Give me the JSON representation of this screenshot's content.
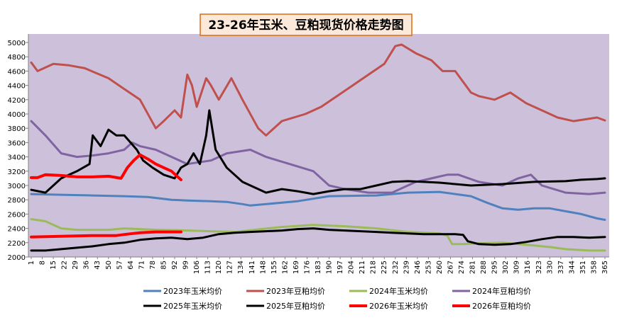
{
  "chart_data": {
    "type": "line",
    "title": "23-26年玉米、豆粕现货价格走势图",
    "xlabel": "",
    "ylabel": "",
    "xlim": [
      1,
      365
    ],
    "ylim": [
      2000,
      5000
    ],
    "y_ticks": [
      2000,
      2200,
      2400,
      2600,
      2800,
      3000,
      3200,
      3400,
      3600,
      3800,
      4000,
      4200,
      4400,
      4600,
      4800,
      5000
    ],
    "x_ticks": [
      1,
      8,
      15,
      22,
      29,
      36,
      43,
      50,
      57,
      64,
      71,
      78,
      85,
      92,
      99,
      106,
      113,
      120,
      127,
      134,
      141,
      148,
      155,
      162,
      169,
      176,
      183,
      190,
      197,
      204,
      211,
      218,
      225,
      232,
      239,
      246,
      253,
      260,
      267,
      274,
      281,
      288,
      295,
      302,
      309,
      316,
      323,
      330,
      337,
      344,
      351,
      358,
      365
    ],
    "grid": false,
    "legend_position": "bottom",
    "series": [
      {
        "name": "2023年玉米均价",
        "color": "#4f81bd",
        "width": 3,
        "x": [
          1,
          20,
          40,
          60,
          75,
          90,
          100,
          115,
          125,
          135,
          140,
          170,
          190,
          220,
          240,
          260,
          270,
          280,
          290,
          300,
          310,
          320,
          330,
          340,
          350,
          360,
          365
        ],
        "y": [
          2880,
          2870,
          2860,
          2850,
          2840,
          2800,
          2790,
          2780,
          2770,
          2740,
          2720,
          2780,
          2850,
          2860,
          2900,
          2910,
          2880,
          2850,
          2760,
          2680,
          2660,
          2680,
          2680,
          2640,
          2600,
          2540,
          2520
        ]
      },
      {
        "name": "2023年豆粕均价",
        "color": "#c0504d",
        "width": 3,
        "x": [
          1,
          5,
          15,
          25,
          35,
          50,
          60,
          70,
          80,
          85,
          92,
          96,
          100,
          103,
          106,
          112,
          115,
          120,
          128,
          135,
          145,
          150,
          160,
          175,
          185,
          195,
          205,
          215,
          225,
          232,
          236,
          245,
          255,
          262,
          270,
          280,
          285,
          295,
          305,
          315,
          325,
          335,
          345,
          360,
          365
        ],
        "y": [
          4720,
          4600,
          4700,
          4680,
          4640,
          4500,
          4350,
          4200,
          3800,
          3900,
          4050,
          3950,
          4550,
          4400,
          4100,
          4500,
          4400,
          4200,
          4500,
          4200,
          3800,
          3700,
          3900,
          4000,
          4100,
          4250,
          4400,
          4550,
          4700,
          4950,
          4970,
          4850,
          4750,
          4600,
          4600,
          4300,
          4250,
          4200,
          4300,
          4150,
          4050,
          3950,
          3900,
          3950,
          3910
        ]
      },
      {
        "name": "2024年玉米均价",
        "color": "#9bbb59",
        "width": 3,
        "x": [
          1,
          10,
          20,
          30,
          50,
          60,
          80,
          100,
          130,
          160,
          180,
          200,
          220,
          240,
          260,
          265,
          268,
          275,
          285,
          300,
          320,
          330,
          340,
          355,
          365
        ],
        "y": [
          2530,
          2500,
          2400,
          2380,
          2380,
          2400,
          2380,
          2370,
          2350,
          2420,
          2450,
          2430,
          2400,
          2350,
          2330,
          2300,
          2180,
          2180,
          2190,
          2200,
          2160,
          2140,
          2110,
          2090,
          2090
        ]
      },
      {
        "name": "2024年豆粕均价",
        "color": "#8064a2",
        "width": 3,
        "x": [
          1,
          10,
          20,
          30,
          40,
          50,
          60,
          65,
          70,
          80,
          90,
          100,
          115,
          125,
          140,
          150,
          165,
          180,
          190,
          200,
          215,
          230,
          245,
          255,
          265,
          272,
          285,
          300,
          310,
          318,
          325,
          340,
          355,
          365
        ],
        "y": [
          3900,
          3700,
          3450,
          3400,
          3420,
          3450,
          3500,
          3600,
          3550,
          3500,
          3400,
          3300,
          3350,
          3450,
          3500,
          3400,
          3300,
          3200,
          3000,
          2950,
          2900,
          2900,
          3050,
          3100,
          3150,
          3150,
          3050,
          3000,
          3100,
          3150,
          3000,
          2900,
          2880,
          2900
        ]
      },
      {
        "name": "2025年玉米均价",
        "color": "#000000",
        "width": 3,
        "x": [
          1,
          10,
          20,
          30,
          40,
          50,
          60,
          70,
          80,
          90,
          100,
          110,
          120,
          130,
          140,
          150,
          160,
          170,
          180,
          190,
          200,
          210,
          220,
          230,
          240,
          250,
          260,
          270,
          275,
          278,
          285,
          295,
          305,
          315,
          325,
          335,
          345,
          355,
          365
        ],
        "y": [
          2090,
          2090,
          2110,
          2130,
          2150,
          2180,
          2200,
          2240,
          2260,
          2270,
          2250,
          2270,
          2320,
          2340,
          2350,
          2360,
          2370,
          2390,
          2400,
          2380,
          2370,
          2360,
          2350,
          2340,
          2330,
          2320,
          2320,
          2320,
          2310,
          2220,
          2180,
          2170,
          2180,
          2210,
          2250,
          2280,
          2280,
          2270,
          2280
        ]
      },
      {
        "name": "2025年豆粕均价",
        "color": "#000000",
        "width": 3,
        "x": [
          1,
          10,
          20,
          30,
          38,
          40,
          45,
          50,
          55,
          60,
          68,
          72,
          78,
          85,
          92,
          96,
          100,
          104,
          108,
          112,
          114,
          118,
          125,
          135,
          150,
          160,
          170,
          180,
          190,
          200,
          210,
          220,
          230,
          240,
          250,
          260,
          280,
          300,
          320,
          340,
          350,
          360,
          365
        ],
        "y": [
          2940,
          2900,
          3100,
          3200,
          3300,
          3700,
          3550,
          3780,
          3700,
          3700,
          3500,
          3350,
          3250,
          3150,
          3100,
          3250,
          3300,
          3450,
          3300,
          3700,
          4050,
          3500,
          3250,
          3050,
          2900,
          2950,
          2920,
          2880,
          2920,
          2950,
          2950,
          3000,
          3050,
          3060,
          3050,
          3040,
          3000,
          3020,
          3050,
          3060,
          3080,
          3090,
          3100
        ]
      },
      {
        "name": "2026年玉米均价",
        "color": "#ff0000",
        "width": 4,
        "x": [
          1,
          20,
          40,
          55,
          62,
          70,
          80,
          88,
          96
        ],
        "y": [
          2280,
          2290,
          2300,
          2300,
          2320,
          2340,
          2350,
          2350,
          2350
        ]
      },
      {
        "name": "2026年豆粕均价",
        "color": "#ff0000",
        "width": 4,
        "x": [
          1,
          5,
          10,
          20,
          30,
          40,
          50,
          58,
          62,
          66,
          70,
          75,
          80,
          85,
          90,
          96
        ],
        "y": [
          3110,
          3110,
          3150,
          3140,
          3120,
          3120,
          3130,
          3100,
          3250,
          3350,
          3430,
          3370,
          3300,
          3250,
          3200,
          3080
        ]
      }
    ]
  }
}
